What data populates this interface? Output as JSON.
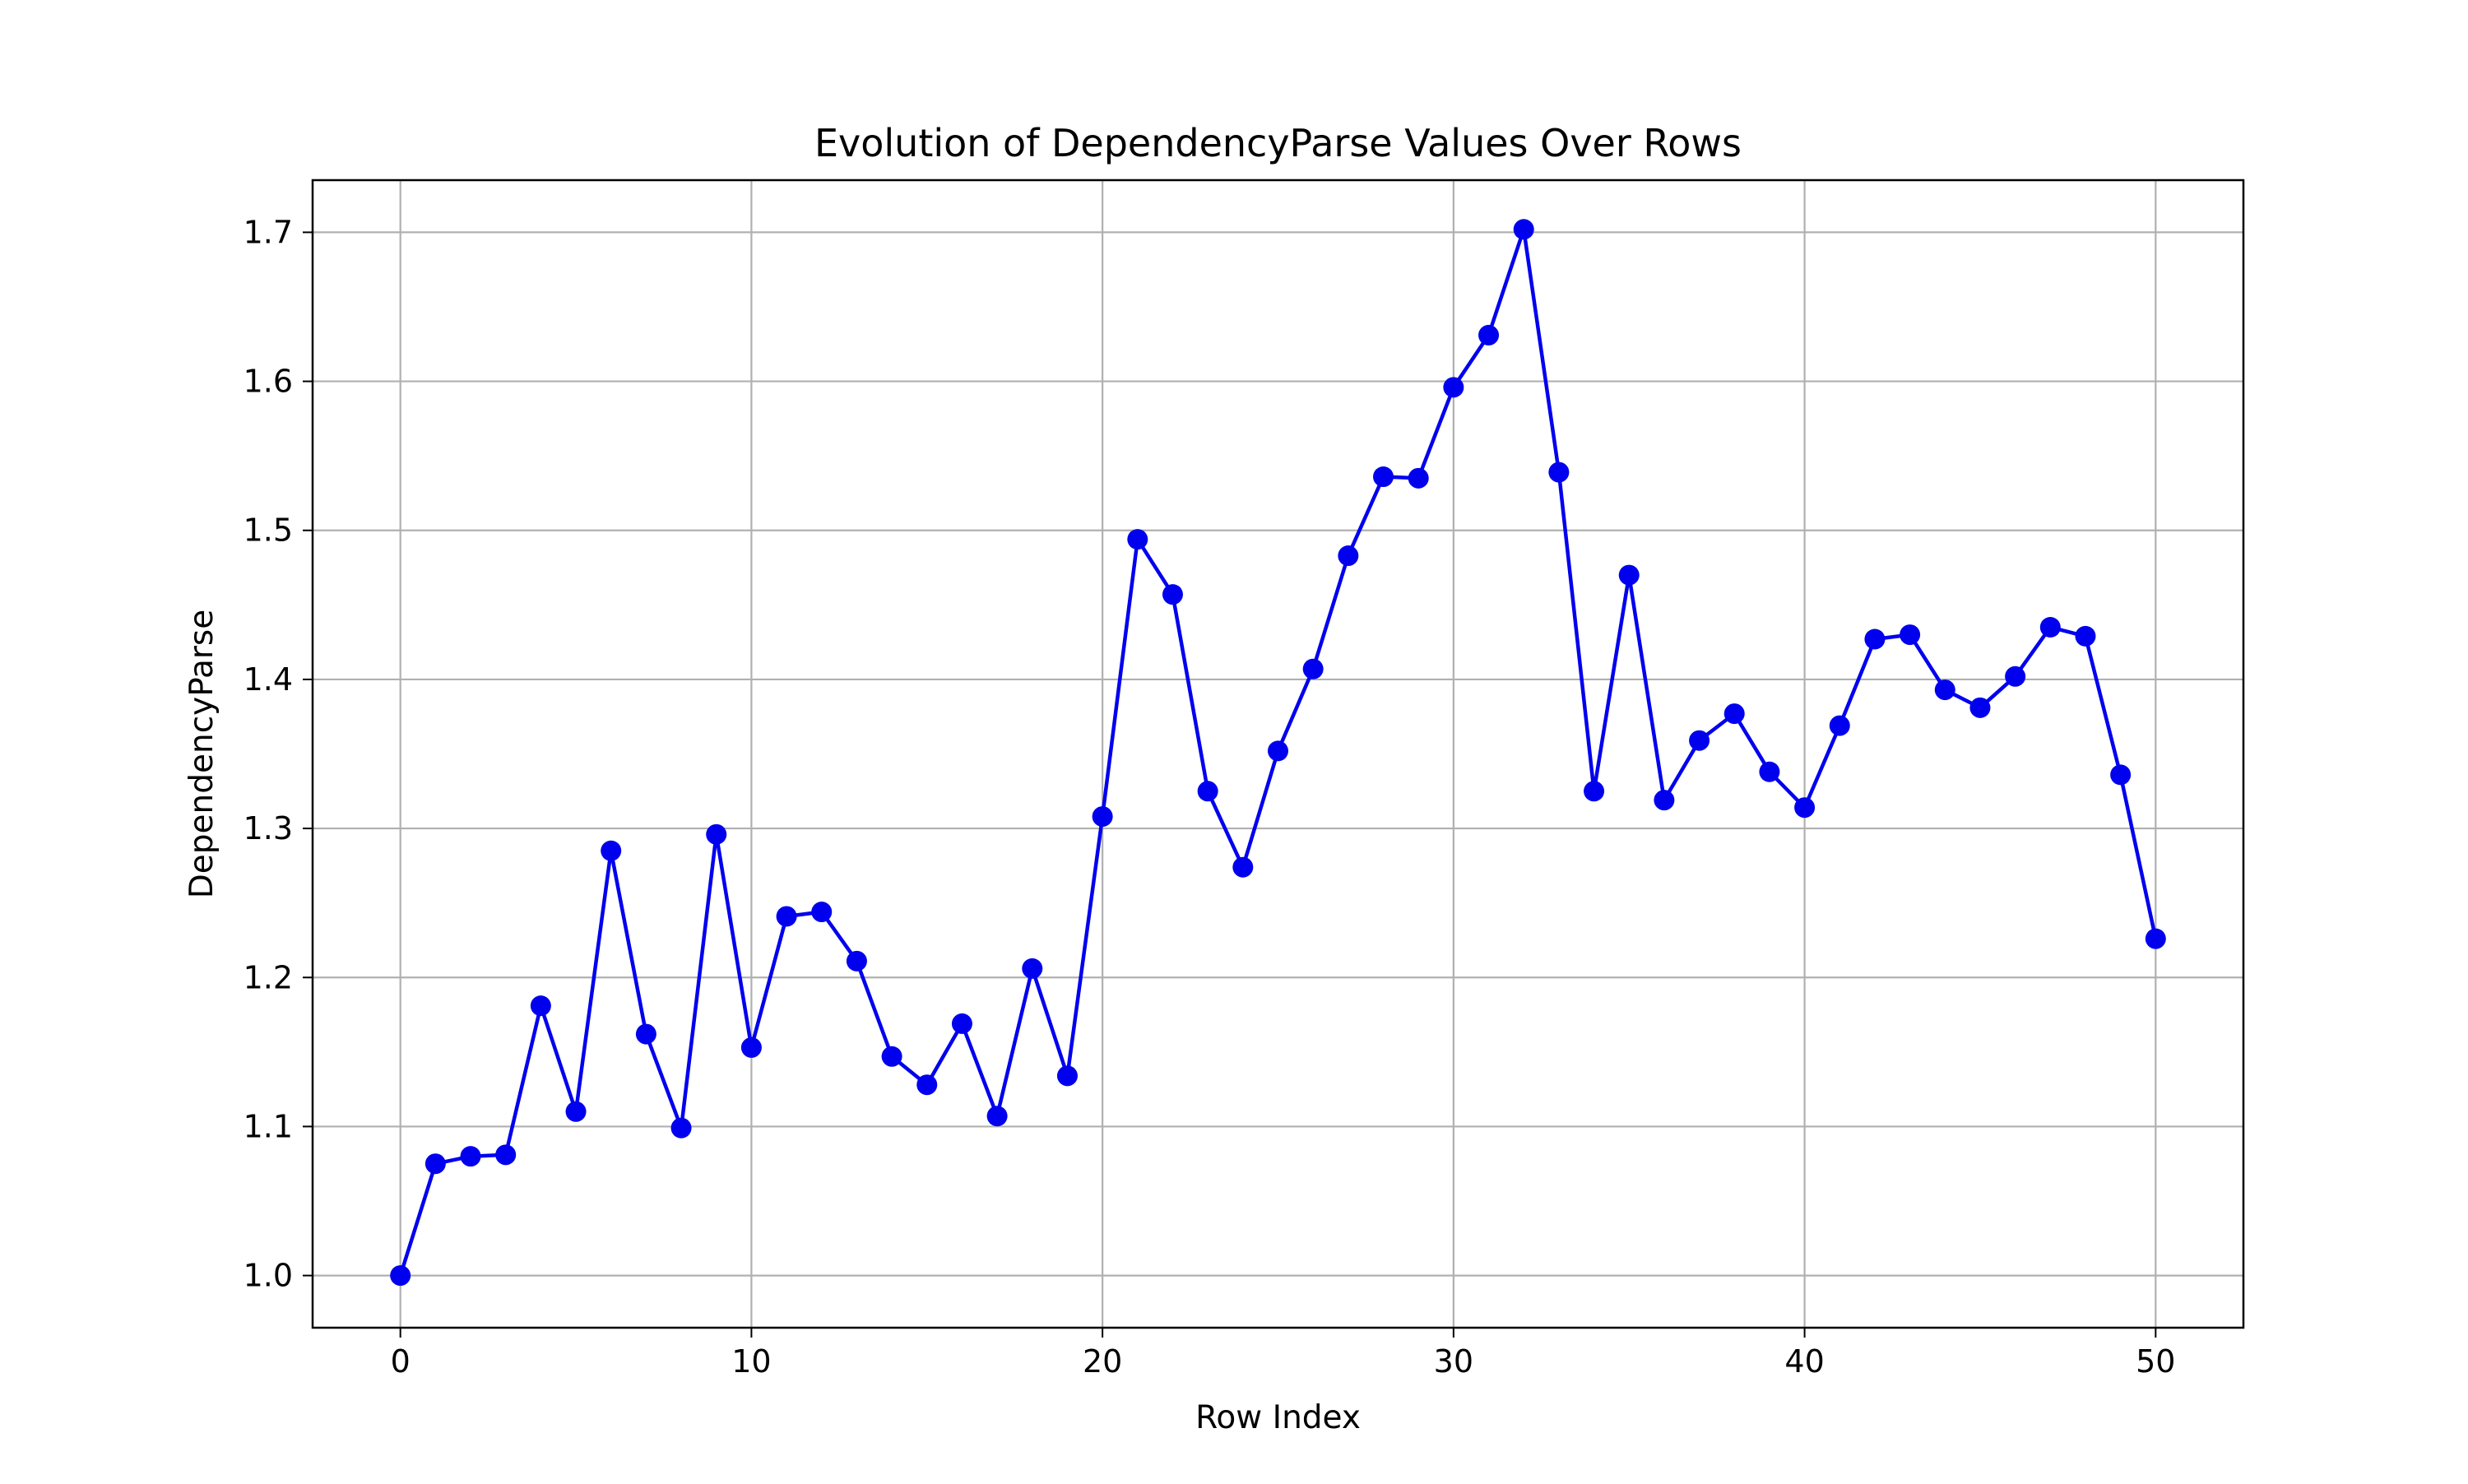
{
  "chart_data": {
    "type": "line",
    "title": "Evolution of DependencyParse Values Over Rows",
    "xlabel": "Row Index",
    "ylabel": "DependencyParse",
    "xlim": [
      -2.5,
      52.5
    ],
    "ylim": [
      0.965,
      1.735
    ],
    "xticks": [
      0,
      10,
      20,
      30,
      40,
      50
    ],
    "xtick_labels": [
      "0",
      "10",
      "20",
      "30",
      "40",
      "50"
    ],
    "yticks": [
      1.0,
      1.1,
      1.2,
      1.3,
      1.4,
      1.5,
      1.6,
      1.7
    ],
    "ytick_labels": [
      "1.0",
      "1.1",
      "1.2",
      "1.3",
      "1.4",
      "1.5",
      "1.6",
      "1.7"
    ],
    "grid": true,
    "legend": "none",
    "color": "#0000ee",
    "marker": "circle",
    "series": [
      {
        "x": [
          0,
          1,
          2,
          3,
          4,
          5,
          6,
          7,
          8,
          9,
          10,
          11,
          12,
          13,
          14,
          15,
          16,
          17,
          18,
          19,
          20,
          21,
          22,
          23,
          24,
          25,
          26,
          27,
          28,
          29,
          30,
          31,
          32,
          33,
          34,
          35,
          36,
          37,
          38,
          39,
          40,
          41,
          42,
          43,
          44,
          45,
          46,
          47,
          48,
          49,
          50
        ],
        "values": [
          1.0,
          1.075,
          1.08,
          1.081,
          1.181,
          1.11,
          1.285,
          1.162,
          1.099,
          1.296,
          1.153,
          1.241,
          1.244,
          1.211,
          1.147,
          1.128,
          1.169,
          1.107,
          1.206,
          1.134,
          1.308,
          1.494,
          1.457,
          1.325,
          1.274,
          1.352,
          1.407,
          1.483,
          1.536,
          1.535,
          1.596,
          1.631,
          1.702,
          1.539,
          1.325,
          1.47,
          1.319,
          1.359,
          1.377,
          1.338,
          1.314,
          1.369,
          1.427,
          1.43,
          1.393,
          1.381,
          1.402,
          1.435,
          1.429,
          1.336,
          1.226
        ]
      }
    ]
  }
}
